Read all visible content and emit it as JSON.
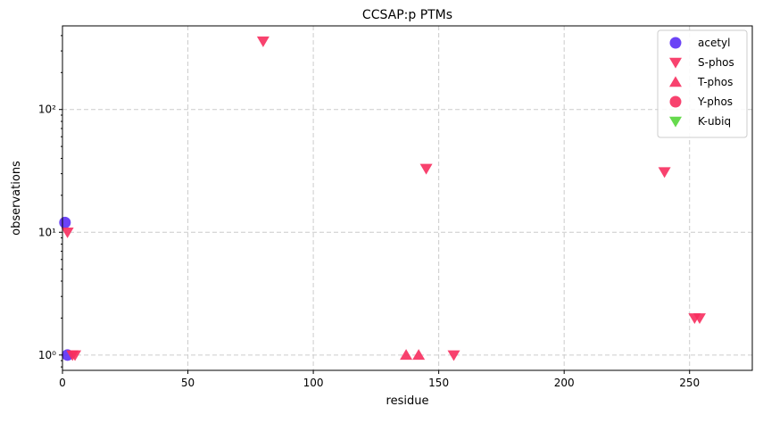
{
  "chart_data": {
    "type": "scatter",
    "title": "CCSAP:p PTMs",
    "xlabel": "residue",
    "ylabel": "observations",
    "xlim": [
      0,
      275
    ],
    "ylim": [
      0.75,
      480
    ],
    "yscale": "log",
    "grid": true,
    "legend_position": "top-right",
    "x_ticks": [
      0,
      50,
      100,
      150,
      200,
      250
    ],
    "x_tick_labels": [
      "0",
      "50",
      "100",
      "150",
      "200",
      "250"
    ],
    "y_ticks": [
      1,
      10,
      100
    ],
    "y_tick_labels": [
      "10⁰",
      "10¹",
      "10²"
    ],
    "series": [
      {
        "name": "acetyl",
        "marker": "circle",
        "color": "#5b2ff5",
        "points": [
          {
            "x": 1,
            "y": 12
          },
          {
            "x": 2,
            "y": 1
          }
        ]
      },
      {
        "name": "S-phos",
        "marker": "triangle-down",
        "color": "#f72d5e",
        "points": [
          {
            "x": 2,
            "y": 10
          },
          {
            "x": 4,
            "y": 1
          },
          {
            "x": 5,
            "y": 1
          },
          {
            "x": 80,
            "y": 360
          },
          {
            "x": 145,
            "y": 33
          },
          {
            "x": 156,
            "y": 1
          },
          {
            "x": 240,
            "y": 31
          },
          {
            "x": 252,
            "y": 2
          },
          {
            "x": 254,
            "y": 2
          }
        ]
      },
      {
        "name": "T-phos",
        "marker": "triangle-up",
        "color": "#f72d5e",
        "points": [
          {
            "x": 137,
            "y": 1
          },
          {
            "x": 142,
            "y": 1
          }
        ]
      },
      {
        "name": "Y-phos",
        "marker": "circle",
        "color": "#f72d5e",
        "points": []
      },
      {
        "name": "K-ubiq",
        "marker": "triangle-down",
        "color": "#55d63a",
        "points": []
      }
    ]
  }
}
